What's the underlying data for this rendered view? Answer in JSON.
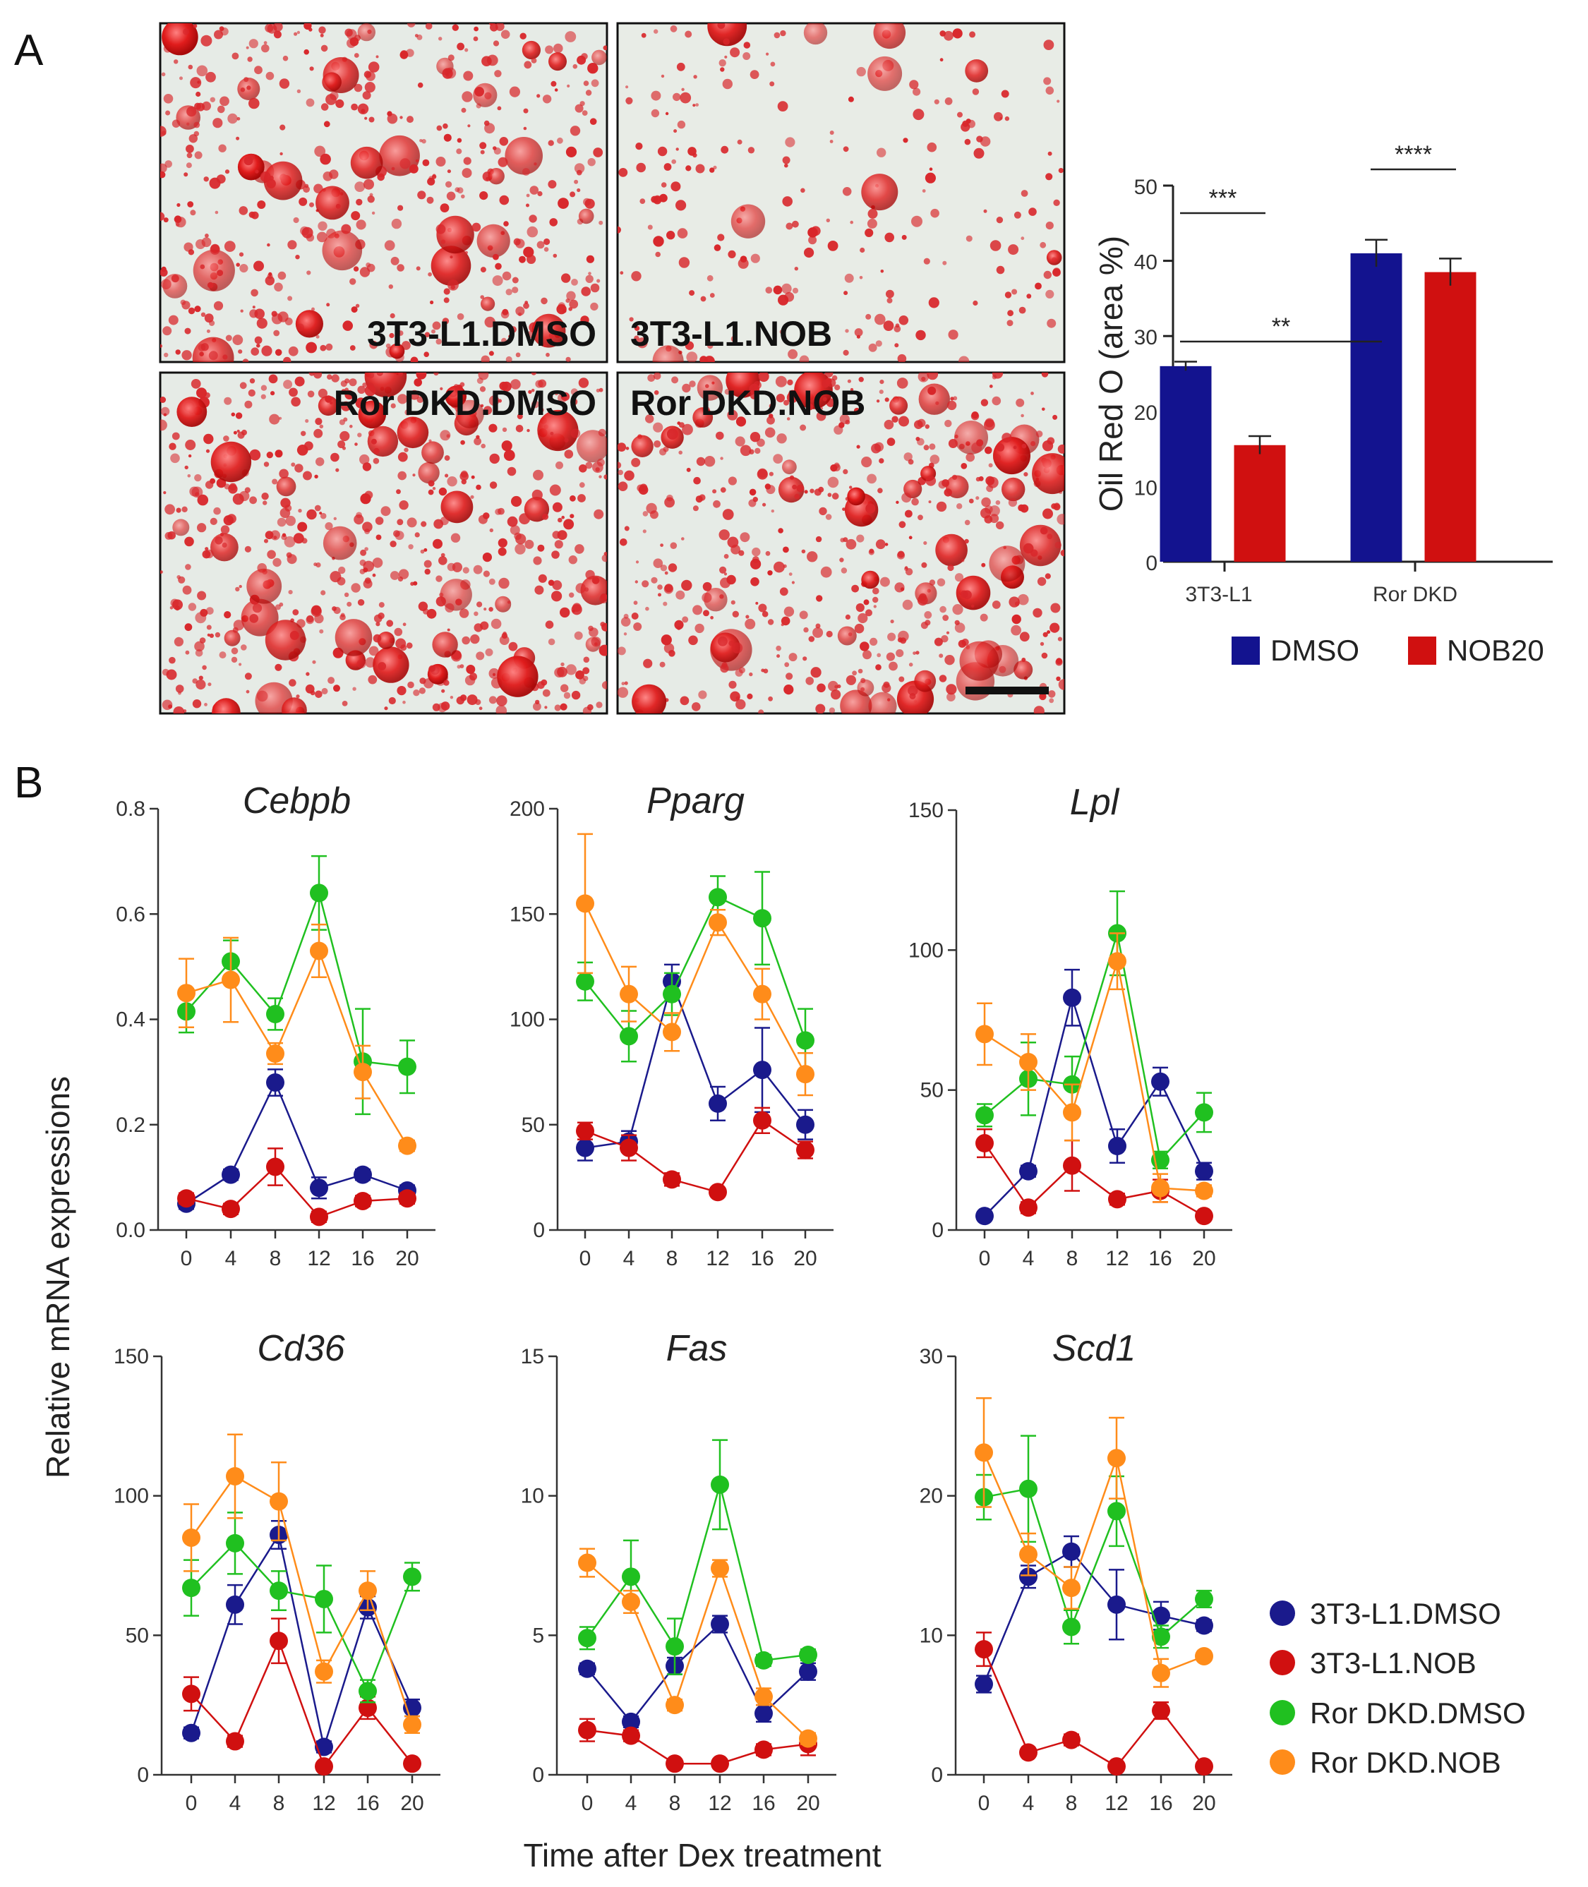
{
  "figure": {
    "panel_a_letter": "A",
    "panel_b_letter": "B",
    "micrographs": [
      {
        "label": "3T3-L1.DMSO",
        "density": 1.0
      },
      {
        "label": "3T3-L1.NOB",
        "density": 0.45
      },
      {
        "label": "Ror DKD.DMSO",
        "density": 1.25
      },
      {
        "label": "Ror DKD.NOB",
        "density": 1.1
      }
    ],
    "b_ylabel": "Relative mRNA expressions",
    "b_xlabel": "Time after Dex treatment",
    "b_legend": [
      {
        "name": "3T3-L1.DMSO",
        "color": "#1a1a8c"
      },
      {
        "name": "3T3-L1.NOB",
        "color": "#d01010"
      },
      {
        "name": "Ror DKD.DMSO",
        "color": "#20c020"
      },
      {
        "name": "Ror DKD.NOB",
        "color": "#ff8c1a"
      }
    ]
  },
  "chart_data": [
    {
      "id": "oil-red-o",
      "type": "bar",
      "categories": [
        "3T3-L1",
        "Ror DKD"
      ],
      "ylabel": "Oil Red O (area %)",
      "ylim": [
        0,
        50
      ],
      "yticks": [
        0,
        10,
        20,
        30,
        40,
        50
      ],
      "series": [
        {
          "name": "DMSO",
          "color": "#13138f",
          "values": [
            26,
            41
          ],
          "err": [
            0.6,
            1.8
          ]
        },
        {
          "name": "NOB20",
          "color": "#d01010",
          "values": [
            15.5,
            38.5
          ],
          "err": [
            1.2,
            1.8
          ]
        }
      ],
      "significance": [
        {
          "text": "**",
          "from": [
            0,
            0
          ],
          "to": [
            0,
            1
          ]
        },
        {
          "text": "***",
          "from": [
            0,
            0
          ],
          "to": [
            1,
            0
          ]
        },
        {
          "text": "****",
          "from": [
            0,
            1
          ],
          "to": [
            1,
            1
          ]
        }
      ]
    },
    {
      "id": "cebpb",
      "type": "line",
      "title": "Cebpb",
      "x": [
        0,
        4,
        8,
        12,
        16,
        20
      ],
      "ylim": [
        0,
        0.8
      ],
      "yticks": [
        "0.0",
        "0.2",
        "0.4",
        "0.6",
        "0.8"
      ],
      "series": [
        {
          "name": "3T3-L1.DMSO",
          "values": [
            0.05,
            0.105,
            0.28,
            0.08,
            0.105,
            0.075
          ],
          "err": [
            0.01,
            0.01,
            0.025,
            0.02,
            0.01,
            0.01
          ]
        },
        {
          "name": "3T3-L1.NOB",
          "values": [
            0.06,
            0.04,
            0.12,
            0.025,
            0.055,
            0.06
          ],
          "err": [
            0.01,
            0.01,
            0.035,
            0.01,
            0.01,
            0.01
          ]
        },
        {
          "name": "Ror DKD.DMSO",
          "values": [
            0.415,
            0.51,
            0.41,
            0.64,
            0.32,
            0.31
          ],
          "err": [
            0.04,
            0.04,
            0.03,
            0.07,
            0.1,
            0.05
          ]
        },
        {
          "name": "Ror DKD.NOB",
          "values": [
            0.45,
            0.475,
            0.335,
            0.53,
            0.3,
            0.16
          ],
          "err": [
            0.065,
            0.08,
            0.02,
            0.05,
            0.05,
            0.01
          ]
        }
      ]
    },
    {
      "id": "pparg",
      "type": "line",
      "title": "Pparg",
      "x": [
        0,
        4,
        8,
        12,
        16,
        20
      ],
      "ylim": [
        0,
        200
      ],
      "yticks": [
        "0",
        "50",
        "100",
        "150",
        "200"
      ],
      "series": [
        {
          "name": "3T3-L1.DMSO",
          "values": [
            39,
            42,
            118,
            60,
            76,
            50
          ],
          "err": [
            6,
            5,
            8,
            8,
            20,
            7
          ]
        },
        {
          "name": "3T3-L1.NOB",
          "values": [
            47,
            39,
            24,
            18,
            52,
            38
          ],
          "err": [
            4,
            6,
            3,
            2,
            6,
            4
          ]
        },
        {
          "name": "Ror DKD.DMSO",
          "values": [
            118,
            92,
            112,
            158,
            148,
            90
          ],
          "err": [
            9,
            12,
            10,
            10,
            22,
            15
          ]
        },
        {
          "name": "Ror DKD.NOB",
          "values": [
            155,
            112,
            94,
            146,
            112,
            74
          ],
          "err": [
            33,
            13,
            9,
            6,
            12,
            10
          ]
        }
      ]
    },
    {
      "id": "lpl",
      "type": "line",
      "title": "Lpl",
      "x": [
        0,
        4,
        8,
        12,
        16,
        20
      ],
      "ylim": [
        0,
        150
      ],
      "yticks": [
        "0",
        "50",
        "100",
        "150"
      ],
      "series": [
        {
          "name": "3T3-L1.DMSO",
          "values": [
            5,
            21,
            83,
            30,
            53,
            21
          ],
          "err": [
            1,
            2,
            10,
            6,
            5,
            3
          ]
        },
        {
          "name": "3T3-L1.NOB",
          "values": [
            31,
            8,
            23,
            11,
            14,
            5
          ],
          "err": [
            5,
            2,
            9,
            2,
            4,
            1
          ]
        },
        {
          "name": "Ror DKD.DMSO",
          "values": [
            41,
            54,
            52,
            106,
            25,
            42
          ],
          "err": [
            4,
            13,
            10,
            15,
            3,
            7
          ]
        },
        {
          "name": "Ror DKD.NOB",
          "values": [
            70,
            60,
            42,
            96,
            15,
            14
          ],
          "err": [
            11,
            10,
            10,
            10,
            5,
            2
          ]
        }
      ]
    },
    {
      "id": "cd36",
      "type": "line",
      "title": "Cd36",
      "x": [
        0,
        4,
        8,
        12,
        16,
        20
      ],
      "ylim": [
        0,
        150
      ],
      "yticks": [
        "0",
        "50",
        "100",
        "150"
      ],
      "series": [
        {
          "name": "3T3-L1.DMSO",
          "values": [
            15,
            61,
            86,
            10,
            60,
            24
          ],
          "err": [
            2,
            7,
            5,
            2,
            4,
            3
          ]
        },
        {
          "name": "3T3-L1.NOB",
          "values": [
            29,
            12,
            48,
            3,
            24,
            4
          ],
          "err": [
            6,
            2,
            8,
            1,
            4,
            1
          ]
        },
        {
          "name": "Ror DKD.DMSO",
          "values": [
            67,
            83,
            66,
            63,
            30,
            71
          ],
          "err": [
            10,
            11,
            7,
            12,
            4,
            5
          ]
        },
        {
          "name": "Ror DKD.NOB",
          "values": [
            85,
            107,
            98,
            37,
            66,
            18
          ],
          "err": [
            12,
            15,
            14,
            4,
            7,
            3
          ]
        }
      ]
    },
    {
      "id": "fas",
      "type": "line",
      "title": "Fas",
      "x": [
        0,
        4,
        8,
        12,
        16,
        20
      ],
      "ylim": [
        0,
        15
      ],
      "yticks": [
        "0",
        "5",
        "10",
        "15"
      ],
      "series": [
        {
          "name": "3T3-L1.DMSO",
          "values": [
            3.8,
            1.9,
            3.9,
            5.4,
            2.2,
            3.7
          ],
          "err": [
            0.2,
            0.2,
            0.3,
            0.3,
            0.3,
            0.3
          ]
        },
        {
          "name": "3T3-L1.NOB",
          "values": [
            1.6,
            1.4,
            0.4,
            0.4,
            0.9,
            1.1
          ],
          "err": [
            0.4,
            0.2,
            0.1,
            0.1,
            0.2,
            0.4
          ]
        },
        {
          "name": "Ror DKD.DMSO",
          "values": [
            4.9,
            7.1,
            4.6,
            10.4,
            4.1,
            4.3
          ],
          "err": [
            0.4,
            1.3,
            1.0,
            1.6,
            0.2,
            0.2
          ]
        },
        {
          "name": "Ror DKD.NOB",
          "values": [
            7.6,
            6.2,
            2.5,
            7.4,
            2.8,
            1.3
          ],
          "err": [
            0.5,
            0.4,
            0.2,
            0.3,
            0.3,
            0.2
          ]
        }
      ]
    },
    {
      "id": "scd1",
      "type": "line",
      "title": "Scd1",
      "x": [
        0,
        4,
        8,
        12,
        16,
        20
      ],
      "ylim": [
        0,
        30
      ],
      "yticks": [
        "0",
        "10",
        "20",
        "30"
      ],
      "series": [
        {
          "name": "3T3-L1.DMSO",
          "values": [
            6.5,
            14.2,
            16,
            12.2,
            11.4,
            10.7
          ],
          "err": [
            0.6,
            0.8,
            1.1,
            2.5,
            1.0,
            0.4
          ]
        },
        {
          "name": "3T3-L1.NOB",
          "values": [
            9,
            1.6,
            2.5,
            0.6,
            4.6,
            0.6
          ],
          "err": [
            1.2,
            0.2,
            0.4,
            0.1,
            0.6,
            0.1
          ]
        },
        {
          "name": "Ror DKD.DMSO",
          "values": [
            19.9,
            20.5,
            10.6,
            18.9,
            9.9,
            12.6
          ],
          "err": [
            1.6,
            3.8,
            1.2,
            2.5,
            0.8,
            0.6
          ]
        },
        {
          "name": "Ror DKD.NOB",
          "values": [
            23.1,
            15.8,
            13.4,
            22.7,
            7.3,
            8.5
          ],
          "err": [
            3.9,
            1.5,
            1.5,
            2.9,
            1.0,
            0.3
          ]
        }
      ]
    }
  ]
}
